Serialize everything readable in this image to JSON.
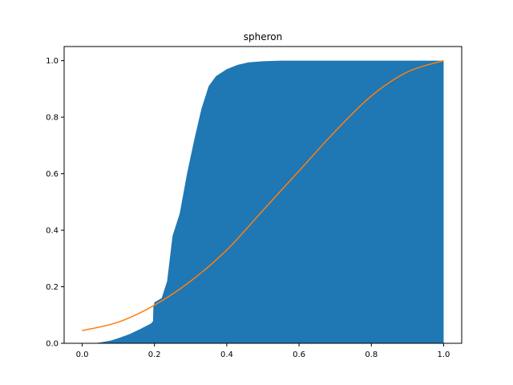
{
  "chart_data": {
    "type": "area",
    "title": "spheron",
    "xlabel": "",
    "ylabel": "",
    "xlim": [
      -0.05,
      1.05
    ],
    "ylim": [
      0,
      1.05
    ],
    "x_ticks": [
      "0.0",
      "0.2",
      "0.4",
      "0.6",
      "0.8",
      "1.0"
    ],
    "y_ticks": [
      "0.0",
      "0.2",
      "0.4",
      "0.6",
      "0.8",
      "1.0"
    ],
    "grid": false,
    "legend": "none",
    "series": [
      {
        "type": "histogram-cumulative",
        "color": "#1f77b4",
        "points": [
          [
            0.0,
            0.0
          ],
          [
            0.03,
            0.0
          ],
          [
            0.05,
            0.003
          ],
          [
            0.08,
            0.01
          ],
          [
            0.1,
            0.018
          ],
          [
            0.13,
            0.032
          ],
          [
            0.16,
            0.05
          ],
          [
            0.19,
            0.07
          ],
          [
            0.196,
            0.078
          ],
          [
            0.197,
            0.13
          ],
          [
            0.2,
            0.145
          ],
          [
            0.22,
            0.16
          ],
          [
            0.235,
            0.22
          ],
          [
            0.25,
            0.38
          ],
          [
            0.27,
            0.46
          ],
          [
            0.29,
            0.6
          ],
          [
            0.31,
            0.72
          ],
          [
            0.33,
            0.83
          ],
          [
            0.35,
            0.91
          ],
          [
            0.37,
            0.945
          ],
          [
            0.4,
            0.97
          ],
          [
            0.43,
            0.985
          ],
          [
            0.46,
            0.994
          ],
          [
            0.5,
            0.998
          ],
          [
            0.55,
            1.0
          ],
          [
            1.0,
            1.0
          ]
        ]
      },
      {
        "type": "line",
        "color": "#ff7f0e",
        "points": [
          [
            0.0,
            0.045
          ],
          [
            0.1,
            0.075
          ],
          [
            0.2,
            0.135
          ],
          [
            0.3,
            0.22
          ],
          [
            0.4,
            0.33
          ],
          [
            0.5,
            0.47
          ],
          [
            0.6,
            0.61
          ],
          [
            0.7,
            0.75
          ],
          [
            0.8,
            0.875
          ],
          [
            0.9,
            0.96
          ],
          [
            1.0,
            1.0
          ]
        ]
      }
    ]
  }
}
